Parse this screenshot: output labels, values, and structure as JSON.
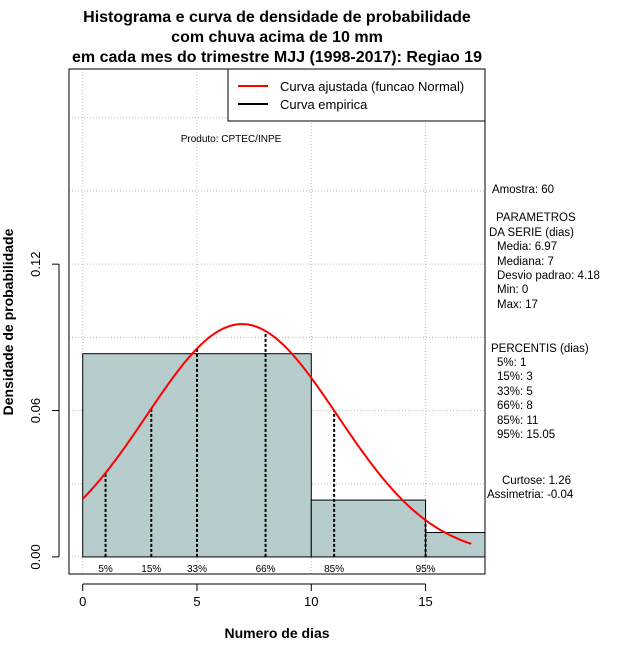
{
  "chart_data": {
    "type": "histogram",
    "title_lines": [
      "Histograma e curva de densidade de probabilidade",
      "com chuva acima de 10 mm",
      "em cada mes do trimestre MJJ (1998-2017): Regiao 19"
    ],
    "xlabel": "Numero de dias",
    "ylabel": "Densidade de probabilidade",
    "xlim": [
      -0.6,
      17.6
    ],
    "ylim": [
      -0.007,
      0.2
    ],
    "x_ticks": [
      0,
      5,
      10,
      15
    ],
    "x_tick_labels": [
      "0",
      "5",
      "10",
      "15"
    ],
    "y_ticks": [
      0.0,
      0.06,
      0.12
    ],
    "y_tick_labels": [
      "0.00",
      "0.06",
      "0.12"
    ],
    "grid": true,
    "bins": [
      {
        "start": 0,
        "end": 10,
        "density": 0.0833
      },
      {
        "start": 10,
        "end": 15,
        "density": 0.0233
      },
      {
        "start": 15,
        "end": 17.6,
        "density": 0.01
      }
    ],
    "bar_color": "#b7cccd",
    "fitted_curve": {
      "name": "Curva ajustada (funcao Normal)",
      "mean": 6.97,
      "sd": 4.18,
      "x_range": [
        0,
        17
      ],
      "color": "#ff0000"
    },
    "empirical_curve": {
      "name": "Curva empirica",
      "color": "#000000"
    },
    "percentiles": [
      {
        "label": "5%",
        "x": 1
      },
      {
        "label": "15%",
        "x": 3
      },
      {
        "label": "33%",
        "x": 5
      },
      {
        "label": "66%",
        "x": 8
      },
      {
        "label": "85%",
        "x": 11
      },
      {
        "label": "95%",
        "x": 15
      }
    ],
    "legend": {
      "position": "top-right",
      "items": [
        "Curva ajustada (funcao Normal)",
        "Curva empirica"
      ]
    },
    "annotation": "Produto: CPTEC/INPE",
    "side_panel": {
      "amostra": "Amostra: 60",
      "param_title_1": "PARAMETROS",
      "param_title_2": "DA SERIE (dias)",
      "media": "Media: 6.97",
      "mediana": "Mediana: 7",
      "desvio": "Desvio padrao: 4.18",
      "min": "Min: 0",
      "max": "Max: 17",
      "perc_title": "PERCENTIS (dias)",
      "p5": "5%: 1",
      "p15": "15%: 3",
      "p33": "33%: 5",
      "p66": "66%: 8",
      "p85": "85%: 11",
      "p95": "95%: 15.05",
      "curtose": "Curtose: 1.26",
      "assimetria": "Assimetria: -0.04"
    }
  }
}
